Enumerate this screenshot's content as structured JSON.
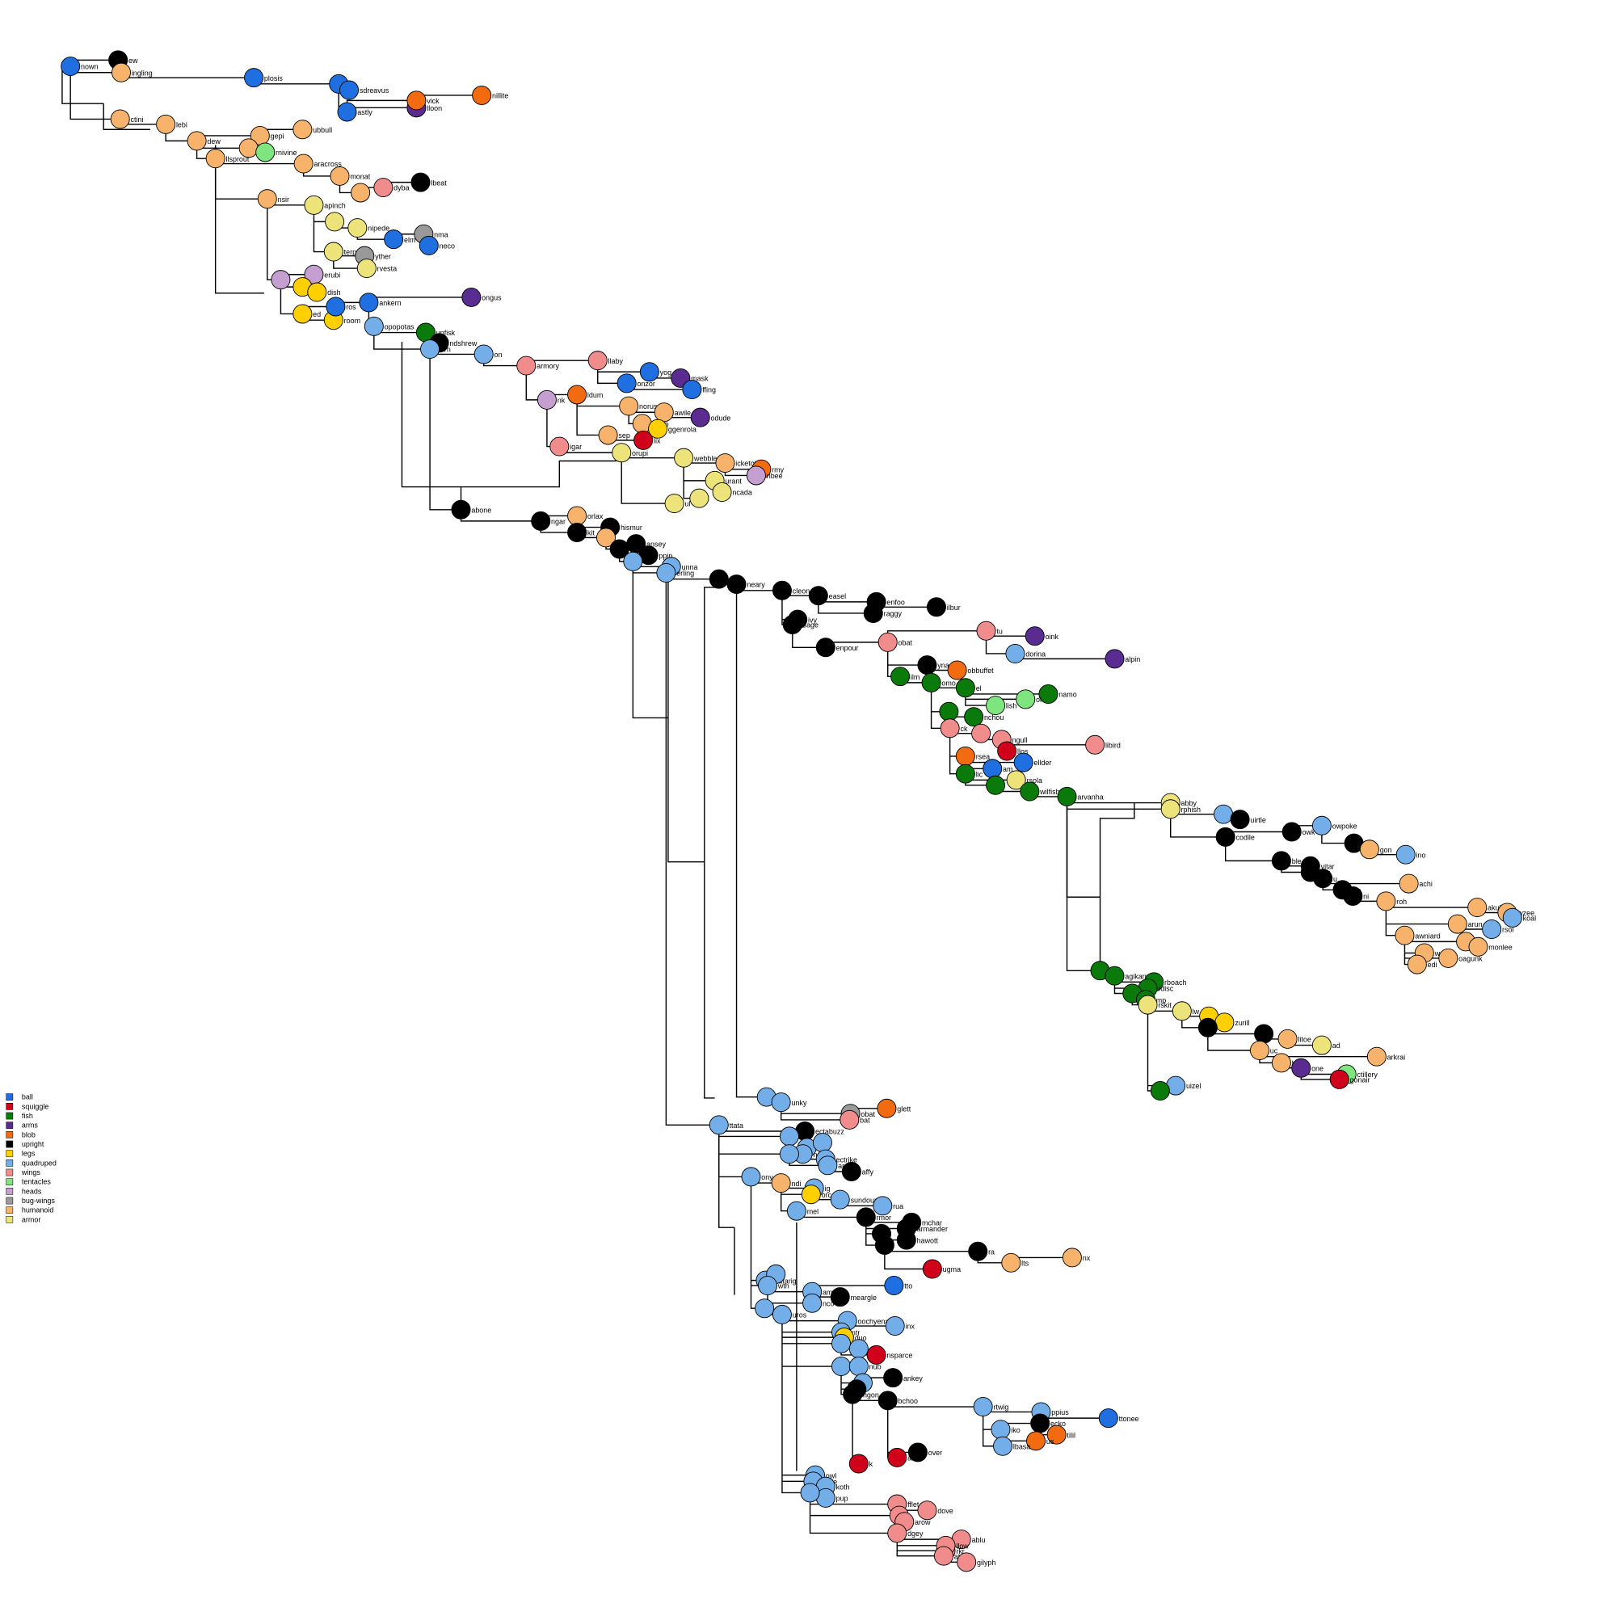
{
  "legend": {
    "items": [
      {
        "label": "ball",
        "color": "#1f6fe0"
      },
      {
        "label": "squiggle",
        "color": "#d0021b"
      },
      {
        "label": "fish",
        "color": "#0a7a0a"
      },
      {
        "label": "arms",
        "color": "#5b2c8f"
      },
      {
        "label": "blob",
        "color": "#f26b11"
      },
      {
        "label": "upright",
        "color": "#000000"
      },
      {
        "label": "legs",
        "color": "#ffd000"
      },
      {
        "label": "quadruped",
        "color": "#74aee8"
      },
      {
        "label": "wings",
        "color": "#f08c8c"
      },
      {
        "label": "tentacles",
        "color": "#7fe57f"
      },
      {
        "label": "heads",
        "color": "#c49fcf"
      },
      {
        "label": "bug-wings",
        "color": "#999999"
      },
      {
        "label": "humanoid",
        "color": "#f7b36b"
      },
      {
        "label": "armor",
        "color": "#ece47a"
      }
    ]
  },
  "nodes": [
    {
      "label": "nown",
      "shape": "ball"
    },
    {
      "label": "ew",
      "shape": "upright"
    },
    {
      "label": "ingling",
      "shape": "humanoid"
    },
    {
      "label": "plosis",
      "shape": "ball"
    },
    {
      "label": "m",
      "shape": "ball"
    },
    {
      "label": "sdreavus",
      "shape": "ball"
    },
    {
      "label": "astly",
      "shape": "ball"
    },
    {
      "label": "lloon",
      "shape": "arms"
    },
    {
      "label": "vick",
      "shape": "blob"
    },
    {
      "label": "nillite",
      "shape": "blob"
    },
    {
      "label": "ctini",
      "shape": "humanoid"
    },
    {
      "label": "lebi",
      "shape": "humanoid"
    },
    {
      "label": "dew",
      "shape": "humanoid"
    },
    {
      "label": "gepi",
      "shape": "humanoid"
    },
    {
      "label": "ubbull",
      "shape": "humanoid"
    },
    {
      "shape": "humanoid"
    },
    {
      "label": "rnivine",
      "shape": "tentacles"
    },
    {
      "label": "llsprout",
      "shape": "humanoid"
    },
    {
      "label": "aracross",
      "shape": "humanoid"
    },
    {
      "label": "monat",
      "shape": "humanoid"
    },
    {
      "shape": "humanoid"
    },
    {
      "label": "dyba",
      "shape": "wings"
    },
    {
      "label": "lbeat",
      "shape": "upright"
    },
    {
      "label": "nsir",
      "shape": "humanoid"
    },
    {
      "label": "apinch",
      "shape": "armor"
    },
    {
      "shape": "armor"
    },
    {
      "label": "nipede",
      "shape": "armor"
    },
    {
      "label": "elm",
      "shape": "ball"
    },
    {
      "label": "nma",
      "shape": "bug-wings"
    },
    {
      "label": "neco",
      "shape": "ball"
    },
    {
      "label": "terp",
      "shape": "armor"
    },
    {
      "label": "yther",
      "shape": "bug-wings"
    },
    {
      "label": "rvesta",
      "shape": "armor"
    },
    {
      "shape": "heads"
    },
    {
      "label": "erubi",
      "shape": "heads"
    },
    {
      "label": "la",
      "shape": "legs"
    },
    {
      "label": "dish",
      "shape": "legs"
    },
    {
      "label": "ed",
      "shape": "legs"
    },
    {
      "label": "room",
      "shape": "legs"
    },
    {
      "label": "ros",
      "shape": "ball"
    },
    {
      "label": "ankern",
      "shape": "ball"
    },
    {
      "label": "ongus",
      "shape": "arms"
    },
    {
      "label": "opopotas",
      "shape": "quadruped"
    },
    {
      "label": "unfisk",
      "shape": "fish"
    },
    {
      "label": "ndshrew",
      "shape": "upright"
    },
    {
      "label": "orn",
      "shape": "quadruped"
    },
    {
      "label": "on",
      "shape": "quadruped"
    },
    {
      "label": "armory",
      "shape": "wings"
    },
    {
      "label": "llaby",
      "shape": "wings"
    },
    {
      "label": "yog",
      "shape": "ball"
    },
    {
      "label": "mask",
      "shape": "arms"
    },
    {
      "label": "onzor",
      "shape": "ball"
    },
    {
      "label": "ffing",
      "shape": "ball"
    },
    {
      "label": "nk",
      "shape": "heads"
    },
    {
      "label": "ldum",
      "shape": "blob"
    },
    {
      "label": "norus",
      "shape": "humanoid"
    },
    {
      "label": "awile",
      "shape": "humanoid"
    },
    {
      "label": "oodo",
      "shape": "humanoid"
    },
    {
      "label": "ggenrola",
      "shape": "legs"
    },
    {
      "label": "odude",
      "shape": "arms"
    },
    {
      "label": "sep",
      "shape": "humanoid"
    },
    {
      "label": "lix",
      "shape": "squiggle"
    },
    {
      "label": "igar",
      "shape": "wings"
    },
    {
      "label": "orupi",
      "shape": "armor"
    },
    {
      "label": "webble",
      "shape": "armor"
    },
    {
      "label": "icketot",
      "shape": "humanoid"
    },
    {
      "label": "rmy",
      "shape": "blob"
    },
    {
      "label": "nbee",
      "shape": "heads"
    },
    {
      "label": "urant",
      "shape": "armor"
    },
    {
      "label": "ncada",
      "shape": "armor"
    },
    {
      "shape": "armor"
    },
    {
      "label": "ul",
      "shape": "armor"
    },
    {
      "label": "abone",
      "shape": "upright"
    },
    {
      "label": "ngar",
      "shape": "upright"
    },
    {
      "label": "orlax",
      "shape": "humanoid"
    },
    {
      "label": "hismur",
      "shape": "upright"
    },
    {
      "label": "kit",
      "shape": "upright"
    },
    {
      "shape": "humanoid"
    },
    {
      "label": "ansey",
      "shape": "upright"
    },
    {
      "shape": "upright"
    },
    {
      "label": "ppin",
      "shape": "upright"
    },
    {
      "shape": "quadruped"
    },
    {
      "label": "unna",
      "shape": "quadruped"
    },
    {
      "label": "erling",
      "shape": "quadruped"
    },
    {
      "shape": "upright"
    },
    {
      "label": "neary",
      "shape": "upright"
    },
    {
      "label": "cleon",
      "shape": "upright"
    },
    {
      "label": "easel",
      "shape": "upright"
    },
    {
      "label": "enfoo",
      "shape": "upright"
    },
    {
      "label": "raggy",
      "shape": "upright"
    },
    {
      "label": "ilbur",
      "shape": "upright"
    },
    {
      "label": "ivy",
      "shape": "upright"
    },
    {
      "label": "sage",
      "shape": "upright"
    },
    {
      "label": "enpour",
      "shape": "upright"
    },
    {
      "label": "obat",
      "shape": "wings"
    },
    {
      "label": "tu",
      "shape": "wings"
    },
    {
      "label": "oink",
      "shape": "arms"
    },
    {
      "label": "dorina",
      "shape": "quadruped"
    },
    {
      "label": "alpin",
      "shape": "arms"
    },
    {
      "label": "yna",
      "shape": "upright"
    },
    {
      "label": "obbuffet",
      "shape": "blob"
    },
    {
      "label": "ilm",
      "shape": "fish"
    },
    {
      "label": "omo",
      "shape": "fish"
    },
    {
      "label": "el",
      "shape": "fish"
    },
    {
      "label": "namo",
      "shape": "fish"
    },
    {
      "label": "ol",
      "shape": "tentacles"
    },
    {
      "label": "lish",
      "shape": "tentacles"
    },
    {
      "shape": "fish"
    },
    {
      "label": "nchou",
      "shape": "fish"
    },
    {
      "label": "ck",
      "shape": "wings"
    },
    {
      "shape": "wings"
    },
    {
      "label": "ngull",
      "shape": "wings"
    },
    {
      "label": "llos",
      "shape": "squiggle"
    },
    {
      "label": "libird",
      "shape": "wings"
    },
    {
      "label": "rsea",
      "shape": "blob"
    },
    {
      "label": "ellder",
      "shape": "ball"
    },
    {
      "label": "am",
      "shape": "ball"
    },
    {
      "label": "lic",
      "shape": "fish"
    },
    {
      "label": "rsola",
      "shape": "armor"
    },
    {
      "shape": "fish"
    },
    {
      "label": "wilfish",
      "shape": "fish"
    },
    {
      "label": "arvanha",
      "shape": "fish"
    },
    {
      "label": "abby",
      "shape": "armor"
    },
    {
      "label": "rphish",
      "shape": "armor"
    },
    {
      "label": "ip",
      "shape": "quadruped"
    },
    {
      "label": "uirtle",
      "shape": "upright"
    },
    {
      "label": "codile",
      "shape": "upright"
    },
    {
      "label": "owk",
      "shape": "upright"
    },
    {
      "label": "owpoke",
      "shape": "quadruped"
    },
    {
      "shape": "upright"
    },
    {
      "label": "gon",
      "shape": "humanoid"
    },
    {
      "label": "ino",
      "shape": "quadruped"
    },
    {
      "label": "ble",
      "shape": "upright"
    },
    {
      "label": "vitar",
      "shape": "upright"
    },
    {
      "label": "ew",
      "shape": "upright"
    },
    {
      "label": "u",
      "shape": "upright"
    },
    {
      "label": "achi",
      "shape": "humanoid"
    },
    {
      "label": "op",
      "shape": "upright"
    },
    {
      "label": "ni",
      "shape": "upright"
    },
    {
      "label": "roh",
      "shape": "humanoid"
    },
    {
      "label": "akuhita",
      "shape": "humanoid"
    },
    {
      "label": "wzee",
      "shape": "humanoid"
    },
    {
      "label": "koal",
      "shape": "quadruped"
    },
    {
      "label": "arun",
      "shape": "humanoid"
    },
    {
      "label": "rsol",
      "shape": "quadruped"
    },
    {
      "label": "awniard",
      "shape": "humanoid"
    },
    {
      "shape": "humanoid"
    },
    {
      "label": "monlee",
      "shape": "humanoid"
    },
    {
      "label": "oagunk",
      "shape": "humanoid"
    },
    {
      "label": "w",
      "shape": "humanoid"
    },
    {
      "label": "edi",
      "shape": "humanoid"
    },
    {
      "label": "en",
      "shape": "fish"
    },
    {
      "label": "agikarp",
      "shape": "fish"
    },
    {
      "label": "rboach",
      "shape": "fish"
    },
    {
      "label": "rdisc",
      "shape": "fish"
    },
    {
      "shape": "fish"
    },
    {
      "label": "mp",
      "shape": "fish"
    },
    {
      "label": "rskit",
      "shape": "armor"
    },
    {
      "label": "lw",
      "shape": "armor"
    },
    {
      "label": "er",
      "shape": "legs"
    },
    {
      "label": "zurill",
      "shape": "legs"
    },
    {
      "shape": "upright"
    },
    {
      "shape": "upright"
    },
    {
      "label": "litoe",
      "shape": "humanoid"
    },
    {
      "label": "ad",
      "shape": "armor"
    },
    {
      "label": "uc",
      "shape": "humanoid"
    },
    {
      "label": "arkrai",
      "shape": "humanoid"
    },
    {
      "label": "hy",
      "shape": "humanoid"
    },
    {
      "label": "one",
      "shape": "arms"
    },
    {
      "label": "ctillery",
      "shape": "tentacles"
    },
    {
      "label": "gonair",
      "shape": "squiggle"
    },
    {
      "label": "uizel",
      "shape": "quadruped"
    },
    {
      "shape": "fish"
    },
    {
      "label": "in",
      "shape": "quadruped"
    },
    {
      "label": "unky",
      "shape": "quadruped"
    },
    {
      "label": "obat",
      "shape": "bug-wings"
    },
    {
      "label": "bat",
      "shape": "wings"
    },
    {
      "label": "glett",
      "shape": "blob"
    },
    {
      "label": "ttata",
      "shape": "quadruped"
    },
    {
      "label": "ectabuzz",
      "shape": "upright"
    },
    {
      "shape": "quadruped"
    },
    {
      "label": "tzle",
      "shape": "quadruped"
    },
    {
      "shape": "quadruped"
    },
    {
      "label": "nsu",
      "shape": "quadruped"
    },
    {
      "shape": "quadruped"
    },
    {
      "label": "ectrike",
      "shape": "quadruped"
    },
    {
      "label": "areep",
      "shape": "quadruped"
    },
    {
      "label": "affy",
      "shape": "upright"
    },
    {
      "label": "ony",
      "shape": "quadruped"
    },
    {
      "label": "ndi",
      "shape": "humanoid"
    },
    {
      "label": "ig",
      "shape": "quadruped"
    },
    {
      "label": "orc",
      "shape": "legs"
    },
    {
      "label": "sundour",
      "shape": "quadruped"
    },
    {
      "label": "rua",
      "shape": "quadruped"
    },
    {
      "label": "mel",
      "shape": "quadruped"
    },
    {
      "label": "rmor",
      "shape": "upright"
    },
    {
      "label": "mchar",
      "shape": "upright"
    },
    {
      "label": "armander",
      "shape": "upright"
    },
    {
      "shape": "upright"
    },
    {
      "label": "hawott",
      "shape": "upright"
    },
    {
      "shape": "upright"
    },
    {
      "label": "ra",
      "shape": "upright"
    },
    {
      "label": "lts",
      "shape": "humanoid"
    },
    {
      "label": "nx",
      "shape": "humanoid"
    },
    {
      "label": "ugma",
      "shape": "squiggle"
    },
    {
      "label": "rafarig",
      "shape": "quadruped"
    },
    {
      "shape": "quadruped"
    },
    {
      "label": "wth",
      "shape": "quadruped"
    },
    {
      "label": "ame",
      "shape": "quadruped"
    },
    {
      "label": "meargle",
      "shape": "upright"
    },
    {
      "label": "nco",
      "shape": "quadruped"
    },
    {
      "label": "tto",
      "shape": "ball"
    },
    {
      "label": "ros",
      "shape": "quadruped"
    },
    {
      "label": "uros",
      "shape": "quadruped"
    },
    {
      "label": "oochyena",
      "shape": "quadruped"
    },
    {
      "label": "inx",
      "shape": "quadruped"
    },
    {
      "label": "ntr",
      "shape": "quadruped"
    },
    {
      "label": "duo",
      "shape": "legs"
    },
    {
      "label": "stra",
      "shape": "quadruped"
    },
    {
      "label": "nsparce",
      "shape": "squiggle"
    },
    {
      "shape": "quadruped"
    },
    {
      "label": "rits",
      "shape": "quadruped"
    },
    {
      "label": "nub",
      "shape": "quadruped"
    },
    {
      "label": "ankey",
      "shape": "upright"
    },
    {
      "shape": "quadruped"
    },
    {
      "shape": "upright"
    },
    {
      "label": "ngon",
      "shape": "upright"
    },
    {
      "label": "bchoo",
      "shape": "upright"
    },
    {
      "label": "rtwig",
      "shape": "quadruped"
    },
    {
      "label": "ppius",
      "shape": "quadruped"
    },
    {
      "label": "ttonee",
      "shape": "ball"
    },
    {
      "label": "iko",
      "shape": "quadruped"
    },
    {
      "label": "ecko",
      "shape": "upright"
    },
    {
      "label": "tilil",
      "shape": "blob"
    },
    {
      "label": "us",
      "shape": "blob"
    },
    {
      "label": "lbasa",
      "shape": "quadruped"
    },
    {
      "label": "over",
      "shape": "upright"
    },
    {
      "label": "ans",
      "shape": "squiggle"
    },
    {
      "label": "k",
      "shape": "squiggle"
    },
    {
      "label": "owl",
      "shape": "quadruped"
    },
    {
      "label": "ndle",
      "shape": "quadruped"
    },
    {
      "label": "koth",
      "shape": "quadruped"
    },
    {
      "label": "pup",
      "shape": "quadruped"
    },
    {
      "shape": "quadruped"
    },
    {
      "label": "fflet",
      "shape": "wings"
    },
    {
      "label": "dove",
      "shape": "wings"
    },
    {
      "shape": "wings"
    },
    {
      "label": "arow",
      "shape": "wings"
    },
    {
      "label": "dgey",
      "shape": "wings"
    },
    {
      "label": "ablu",
      "shape": "wings"
    },
    {
      "label": "rkr",
      "shape": "wings"
    },
    {
      "label": "llow",
      "shape": "wings"
    },
    {
      "label": "atot",
      "shape": "wings"
    },
    {
      "label": "gilyph",
      "shape": "wings"
    }
  ]
}
